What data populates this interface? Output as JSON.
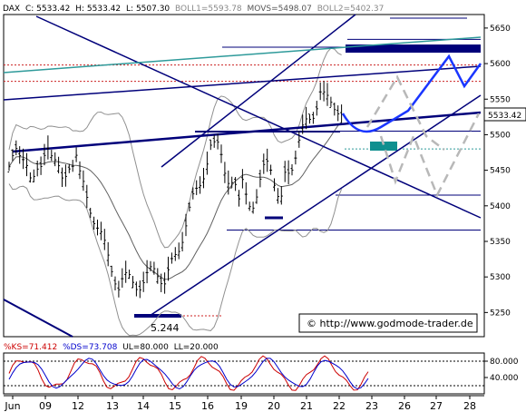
{
  "header": {
    "instrument": "DAX",
    "close": "C: 5533.42",
    "high": "H: 5533.42",
    "low": "L: 5507.30",
    "boll1": "BOLL1=5593.78",
    "movs": "MOVS=5498.07",
    "boll2": "BOLL2=5402.37"
  },
  "stoch_header": {
    "ks": "%KS=71.412",
    "ds": "%DS=73.708",
    "ul": "UL=80.000",
    "ll": "LL=20.000"
  },
  "last_price_label": "5533.42",
  "low_annotation": "5.244",
  "copyright": "© http://www.godmode-trader.de",
  "colors": {
    "price_bar": "#000000",
    "bollinger": "#909090",
    "trendline": "#00007a",
    "teal_line": "#2e9a9a",
    "blue_projection": "#1a36ff",
    "gray_projection": "#b8b8b8",
    "dashed_red": "#cc2222",
    "teal_box": "#0f8f8f",
    "stoch_k": "#cc0000",
    "stoch_d": "#0000cc"
  },
  "chart_data": {
    "type": "candlestick",
    "title": "",
    "price_axis": {
      "ticks": [
        "5650",
        "5600",
        "5550",
        "5500",
        "5450",
        "5400",
        "5350",
        "5300",
        "5250"
      ],
      "ylim": [
        5216,
        5669
      ]
    },
    "x_axis": {
      "ticks": [
        "Jun",
        "09",
        "12",
        "13",
        "14",
        "15",
        "16",
        "19",
        "20",
        "21",
        "22",
        "23",
        "26",
        "27",
        "28"
      ]
    },
    "last_price": 5533.42,
    "annotated_low": 5244,
    "horizontal_levels": [
      5634,
      5623,
      5598,
      5575,
      5505,
      5480,
      5415,
      5366
    ],
    "stochastic": {
      "ticks": [
        "80.000",
        "40.000"
      ],
      "upper_level": 80,
      "lower_level": 20,
      "k": 71.412,
      "d": 73.708
    }
  }
}
